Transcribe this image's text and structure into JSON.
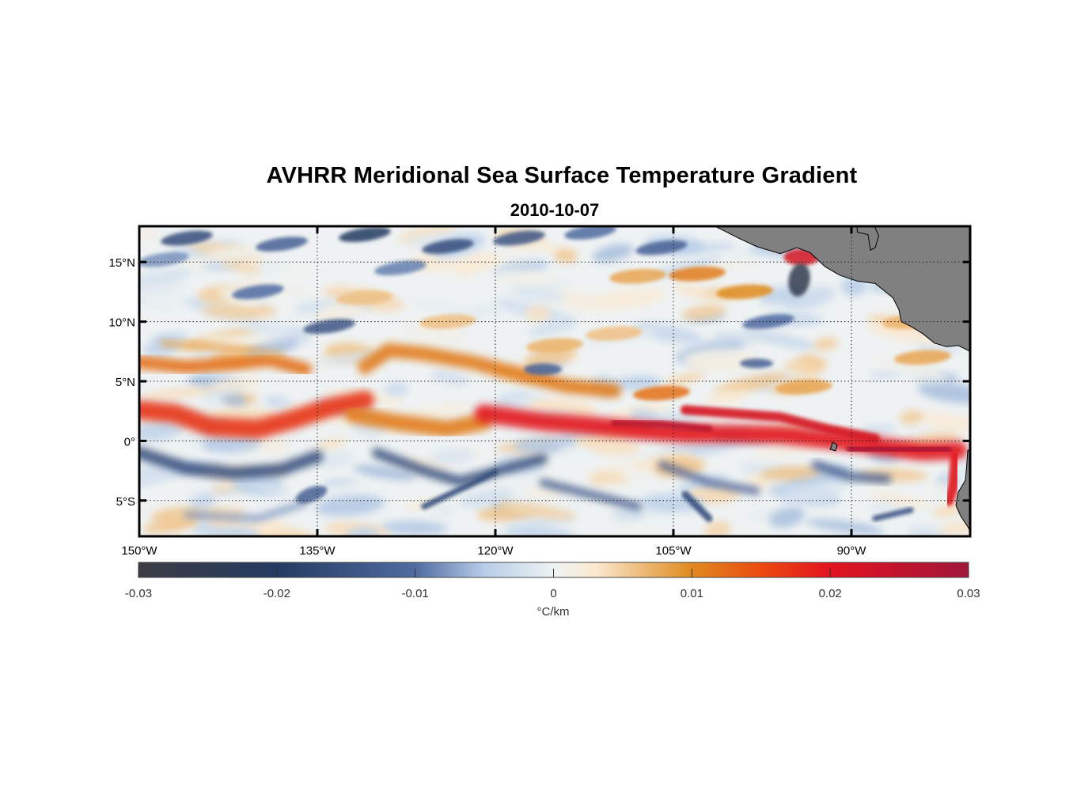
{
  "title": "AVHRR Meridional Sea Surface Temperature Gradient",
  "subtitle": "2010-10-07",
  "chart_data": {
    "type": "heatmap",
    "x_range_deg_east": [
      -150,
      -80
    ],
    "y_range_deg_north": [
      -8,
      18
    ],
    "x_ticks": [
      {
        "value": -150,
        "label": "150°W"
      },
      {
        "value": -135,
        "label": "135°W"
      },
      {
        "value": -120,
        "label": "120°W"
      },
      {
        "value": -105,
        "label": "105°W"
      },
      {
        "value": -90,
        "label": "90°W"
      }
    ],
    "y_ticks": [
      {
        "value": 15,
        "label": "15°N"
      },
      {
        "value": 10,
        "label": "10°N"
      },
      {
        "value": 5,
        "label": "5°N"
      },
      {
        "value": 0,
        "label": "0°"
      },
      {
        "value": -5,
        "label": "5°S"
      }
    ],
    "grid": "dotted",
    "land_color": "#808080",
    "colorbar": {
      "range": [
        -0.03,
        0.03
      ],
      "ticks": [
        {
          "value": -0.03,
          "label": "-0.03"
        },
        {
          "value": -0.02,
          "label": "-0.02"
        },
        {
          "value": -0.01,
          "label": "-0.01"
        },
        {
          "value": 0,
          "label": "0"
        },
        {
          "value": 0.01,
          "label": "0.01"
        },
        {
          "value": 0.02,
          "label": "0.02"
        },
        {
          "value": 0.03,
          "label": "0.03"
        }
      ],
      "unit_label": "°C/km",
      "colormap": [
        {
          "value": -0.03,
          "color": "#3c3c42"
        },
        {
          "value": -0.02,
          "color": "#243a62"
        },
        {
          "value": -0.01,
          "color": "#4f6ba0"
        },
        {
          "value": -0.005,
          "color": "#b7cde8"
        },
        {
          "value": 0,
          "color": "#eef3f3"
        },
        {
          "value": 0.003,
          "color": "#fbe9d1"
        },
        {
          "value": 0.01,
          "color": "#e08a1e"
        },
        {
          "value": 0.015,
          "color": "#eb4a10"
        },
        {
          "value": 0.02,
          "color": "#e2131f"
        },
        {
          "value": 0.03,
          "color": "#a1163a"
        }
      ]
    },
    "features": [
      {
        "name": "equatorial warm front band (positive gradient)",
        "lon_range": [
          -150,
          -80
        ],
        "lat_center": 1.5,
        "value": 0.018
      },
      {
        "name": "south equatorial negative band",
        "lon_range": [
          -150,
          -100
        ],
        "lat_center": -2.5,
        "value": -0.012
      },
      {
        "name": "northern warm band",
        "lon_range": [
          -150,
          -125
        ],
        "lat_center": 6.5,
        "value": 0.011
      },
      {
        "name": "gulf of tehuantepec feature",
        "lon": -94.5,
        "lat": 14,
        "value": -0.025
      }
    ]
  }
}
